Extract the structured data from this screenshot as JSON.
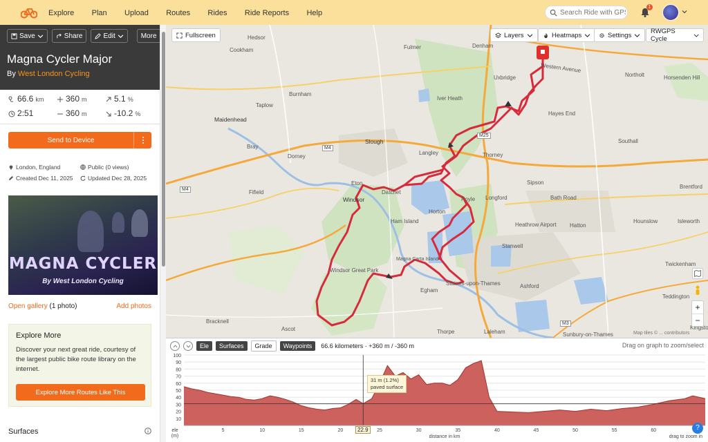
{
  "nav": {
    "items": [
      "Explore",
      "Plan",
      "Upload",
      "Routes",
      "Rides",
      "Ride Reports",
      "Help"
    ],
    "search_placeholder": "Search Ride with GPS",
    "notification_count": "1"
  },
  "toolbar": {
    "save": "Save",
    "share": "Share",
    "edit": "Edit",
    "more": "More"
  },
  "route": {
    "title": "Magna Cycler Major",
    "by_prefix": "By",
    "author": "West London Cycling",
    "distance": "66.6",
    "distance_unit": "km",
    "elev_gain": "360",
    "elev_gain_unit": "m",
    "max_grade": "5.1",
    "max_grade_unit": "%",
    "duration": "2:51",
    "elev_loss": "360",
    "elev_loss_unit": "m",
    "min_grade": "-10.2",
    "min_grade_unit": "%",
    "send_label": "Send to Device",
    "location": "London, England",
    "visibility": "Public (0 views)",
    "created": "Created Dec 11, 2025",
    "updated": "Updated Dec 28, 2025"
  },
  "photo": {
    "title": "MAGNA CYCLER",
    "subtitle": "By West London Cycling"
  },
  "gallery": {
    "open_label": "Open gallery",
    "count_label": "(1 photo)",
    "add_label": "Add photos"
  },
  "explore": {
    "title": "Explore More",
    "body": "Discover your next great ride, courtesy of the largest public bike route library on the internet.",
    "button": "Explore More Routes Like This"
  },
  "surfaces": {
    "title": "Surfaces"
  },
  "map": {
    "fullscreen": "Fullscreen",
    "layers": "Layers",
    "heatmaps": "Heatmaps",
    "settings": "Settings",
    "style": "RWGPS Cycle",
    "attribution": "Map tiles © ... contributors",
    "places": [
      "Denham",
      "Hedsor",
      "Cookham",
      "Fulmer",
      "Uxbridge",
      "Northolt",
      "Western Avenue",
      "Horsenden Hill",
      "Burnham",
      "Iver Heath",
      "Taplow",
      "Hayes End",
      "Maidenhead",
      "Slough",
      "Thorney",
      "Southall",
      "Bray",
      "Dorney",
      "Langley",
      "Fifield",
      "Eton",
      "Datchet",
      "Sipson",
      "Brentford",
      "Windsor",
      "Longford",
      "Bath Road",
      "Horton",
      "Poyle",
      "Ham Island",
      "Heathrow Airport",
      "Hatton",
      "Hounslow",
      "Isleworth",
      "Stanwell",
      "Magna Carta Island",
      "Windsor Great Park",
      "Staines-upon-Thames",
      "Twickenham",
      "Egham",
      "Ashford",
      "Teddington",
      "Bracknell",
      "Ascot",
      "Thorpe",
      "Laleham",
      "Sunbury-on-Thames",
      "Kingston"
    ],
    "roads": [
      "M4",
      "M25",
      "M4",
      "M3"
    ]
  },
  "elevation": {
    "tabs": [
      "Ele",
      "Surfaces",
      "Grade",
      "Waypoints"
    ],
    "summary": "66.6 kilometers · +360 m / -360 m",
    "drag_hint": "Drag on graph to zoom/select",
    "tooltip_line1": "31 m (1.2%)",
    "tooltip_line2": "paved surface",
    "cursor_x": "22.9",
    "ylabel": "ele\n(m)",
    "xlabel": "distance in km",
    "zoom_hint": "drag to zoom in",
    "y_ticks": [
      "100",
      "90",
      "80",
      "70",
      "60",
      "50",
      "40",
      "30",
      "20",
      "10"
    ],
    "x_ticks": [
      "5",
      "10",
      "15",
      "20",
      "25",
      "30",
      "35",
      "40",
      "45",
      "50",
      "55",
      "60"
    ]
  },
  "chart_data": {
    "type": "area",
    "title": "",
    "xlabel": "distance in km",
    "ylabel": "ele (m)",
    "xlim": [
      0,
      66.6
    ],
    "ylim": [
      0,
      100
    ],
    "x": [
      0,
      1,
      2,
      3,
      4,
      5,
      6,
      7,
      8,
      9,
      10,
      11,
      12,
      13,
      14,
      15,
      16,
      17,
      18,
      19,
      20,
      21,
      22,
      22.9,
      24,
      25,
      26,
      27,
      28,
      29,
      30,
      31,
      32,
      33,
      34,
      35,
      36,
      37,
      38,
      39,
      40,
      42,
      44,
      46,
      48,
      50,
      52,
      54,
      56,
      58,
      60,
      62,
      64,
      65,
      66.6
    ],
    "values": [
      55,
      52,
      50,
      47,
      45,
      43,
      41,
      40,
      37,
      36,
      38,
      42,
      40,
      37,
      33,
      28,
      25,
      23,
      22,
      24,
      25,
      30,
      37,
      31,
      38,
      60,
      85,
      70,
      75,
      66,
      72,
      58,
      60,
      60,
      57,
      65,
      82,
      88,
      92,
      40,
      20,
      19,
      18,
      20,
      22,
      20,
      23,
      21,
      24,
      26,
      30,
      35,
      38,
      42,
      38
    ]
  },
  "colors": {
    "accent": "#f26a1b",
    "route": "#d72a3a",
    "topbar": "#fbe09b",
    "elevation_fill": "#c8504b"
  }
}
